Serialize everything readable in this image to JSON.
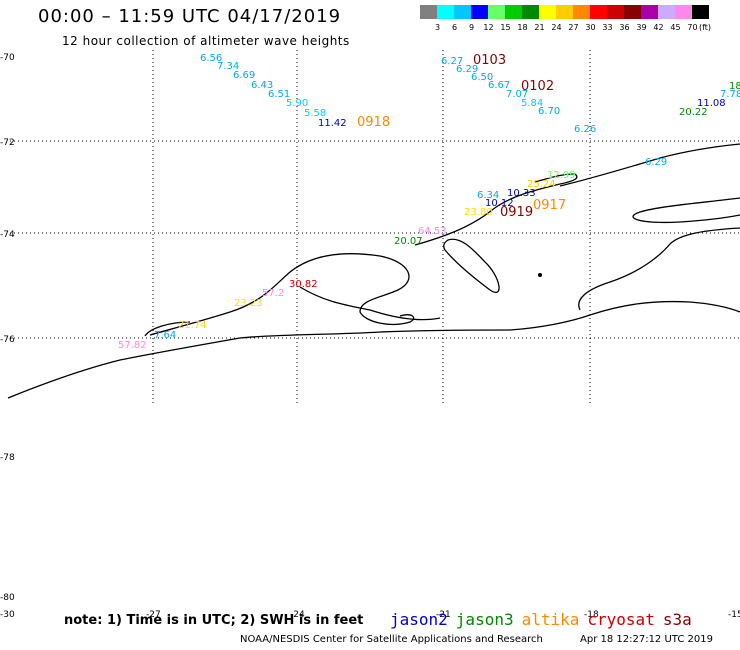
{
  "header": {
    "title": "00:00 – 11:59 UTC 04/17/2019",
    "subtitle": "12 hour collection of altimeter wave heights"
  },
  "color_scale": {
    "unit": "(ft)",
    "entries": [
      {
        "label": "3",
        "color": "#808080"
      },
      {
        "label": "6",
        "color": "#00ffff"
      },
      {
        "label": "9",
        "color": "#00c8ff"
      },
      {
        "label": "12",
        "color": "#0000ff"
      },
      {
        "label": "15",
        "color": "#66ff66"
      },
      {
        "label": "18",
        "color": "#00cc00"
      },
      {
        "label": "21",
        "color": "#008800"
      },
      {
        "label": "24",
        "color": "#ffff00"
      },
      {
        "label": "27",
        "color": "#ffcc00"
      },
      {
        "label": "30",
        "color": "#ff8800"
      },
      {
        "label": "33",
        "color": "#ff0000"
      },
      {
        "label": "36",
        "color": "#cc0000"
      },
      {
        "label": "39",
        "color": "#880000"
      },
      {
        "label": "42",
        "color": "#aa00aa"
      },
      {
        "label": "45",
        "color": "#ccaaff"
      },
      {
        "label": "70",
        "color": "#ff88ee"
      },
      {
        "label": "",
        "color": "#000000"
      }
    ]
  },
  "axes": {
    "lat_labels": [
      "-70",
      "-72",
      "-74",
      "-76",
      "-78",
      "-80"
    ],
    "lon_labels": [
      "-30",
      "-27",
      "-24",
      "-21",
      "-18",
      "-15"
    ]
  },
  "observations": [
    {
      "text": "6.56",
      "color": "#00aaee"
    },
    {
      "text": "7.34",
      "color": "#00aaee"
    },
    {
      "text": "6.69",
      "color": "#00aaee"
    },
    {
      "text": "6.43",
      "color": "#00aaee"
    },
    {
      "text": "6.51",
      "color": "#00aaee"
    },
    {
      "text": "5.90",
      "color": "#00ccff"
    },
    {
      "text": "5.58",
      "color": "#00ccff"
    },
    {
      "text": "11.42",
      "color": "#0000cc"
    },
    {
      "text": "0918",
      "color": "#ff8800"
    },
    {
      "text": "6.27",
      "color": "#00aaee"
    },
    {
      "text": "0103",
      "color": "#880000"
    },
    {
      "text": "6.29",
      "color": "#00aaee"
    },
    {
      "text": "6.50",
      "color": "#00aaee"
    },
    {
      "text": "6.67",
      "color": "#00aaee"
    },
    {
      "text": "0102",
      "color": "#880000"
    },
    {
      "text": "7.07",
      "color": "#00aaee"
    },
    {
      "text": "5.84",
      "color": "#00ccff"
    },
    {
      "text": "6.70",
      "color": "#00aaee"
    },
    {
      "text": "6.26",
      "color": "#00aaee"
    },
    {
      "text": "18",
      "color": "#008800"
    },
    {
      "text": "7.78",
      "color": "#00aaee"
    },
    {
      "text": "11.08",
      "color": "#0000cc"
    },
    {
      "text": "20.22",
      "color": "#008800"
    },
    {
      "text": "6.29",
      "color": "#00aaee"
    },
    {
      "text": "12.99",
      "color": "#66ff66"
    },
    {
      "text": "25.24",
      "color": "#ffcc00"
    },
    {
      "text": "6.34",
      "color": "#00aaee"
    },
    {
      "text": "10.33",
      "color": "#0000cc"
    },
    {
      "text": "10.12",
      "color": "#0000cc"
    },
    {
      "text": "0917",
      "color": "#ff8800"
    },
    {
      "text": "23.80",
      "color": "#ffdd00"
    },
    {
      "text": "0919",
      "color": "#880000"
    },
    {
      "text": "64.53",
      "color": "#ff88ee"
    },
    {
      "text": "20.07",
      "color": "#008800"
    },
    {
      "text": "30.82",
      "color": "#cc0000"
    },
    {
      "text": "57.2",
      "color": "#ff88ee"
    },
    {
      "text": "23.23",
      "color": "#ffdd00"
    },
    {
      "text": "21.74",
      "color": "#ffdd00"
    },
    {
      "text": "7.64",
      "color": "#00aaee"
    },
    {
      "text": "57.82",
      "color": "#ff88ee"
    }
  ],
  "footer": {
    "note": "note: 1) Time is in UTC; 2) SWH is in feet",
    "credit": "NOAA/NESDIS Center for Satellite Applications and Research",
    "timestamp": "Apr 18 12:27:12 UTC 2019",
    "satellites": [
      {
        "name": "jason2",
        "color": "#0000cc"
      },
      {
        "name": "jason3",
        "color": "#008800"
      },
      {
        "name": "altika",
        "color": "#ff8800"
      },
      {
        "name": "cryosat",
        "color": "#cc0000"
      },
      {
        "name": "s3a",
        "color": "#880000"
      }
    ]
  }
}
